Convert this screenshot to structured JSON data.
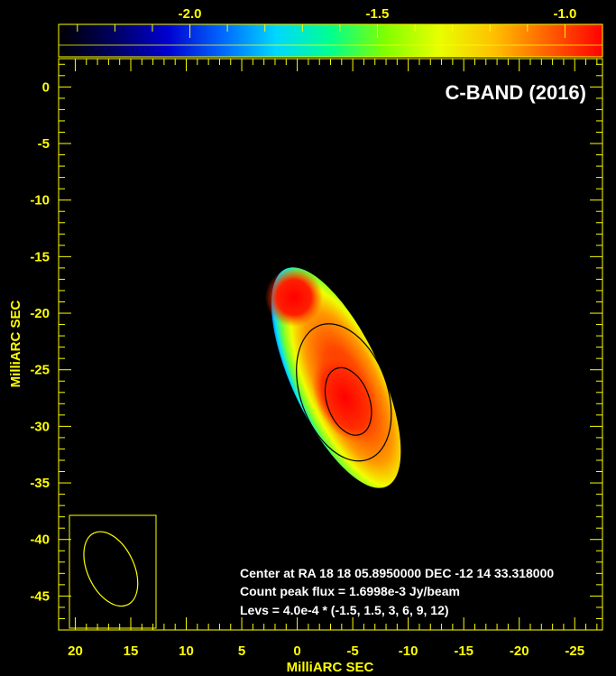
{
  "chart_data": {
    "type": "heatmap",
    "title": "C-BAND (2016)",
    "xlabel": "MilliARC SEC",
    "ylabel": "MilliARC SEC",
    "xlim": [
      21.5,
      -27.5
    ],
    "ylim": [
      -48,
      2.5
    ],
    "x_ticks": [
      20,
      15,
      10,
      5,
      0,
      -5,
      -10,
      -15,
      -20,
      -25
    ],
    "x_tick_labels": [
      "20",
      "15",
      "10",
      "5",
      "0",
      "-5",
      "-10",
      "-15",
      "-20",
      "-25"
    ],
    "y_ticks": [
      0,
      -5,
      -10,
      -15,
      -20,
      -25,
      -30,
      -35,
      -40,
      -45
    ],
    "y_tick_labels": [
      "0",
      "-5",
      "-10",
      "-15",
      "-20",
      "-25",
      "-30",
      "-35",
      "-40",
      "-45"
    ],
    "colorbar": {
      "range": [
        -2.35,
        -0.9
      ],
      "ticks": [
        -2.0,
        -1.5,
        -1.0
      ],
      "tick_labels": [
        "-2.0",
        "-1.5",
        "-1.0"
      ],
      "colors": [
        "#000000",
        "#000060",
        "#0000d0",
        "#0066ff",
        "#00d8ff",
        "#00ff90",
        "#80ff00",
        "#e8ff00",
        "#ffc000",
        "#ff6000",
        "#ff0000"
      ]
    },
    "source_region": {
      "center_ra_mas": -3.5,
      "center_dec_mas": -25.7,
      "half_length_mas": 10.6,
      "half_width_mas": 4.0,
      "position_angle_deg": 25,
      "peak_ra_mas": -4.3,
      "peak_dec_mas": -27.5
    },
    "contours": [
      {
        "level": 1.5,
        "center_x": -4.2,
        "center_y": -27.0,
        "semi_major": 6.3,
        "semi_minor": 3.9,
        "pa_deg": 20
      },
      {
        "level": 3,
        "center_x": -4.6,
        "center_y": -27.8,
        "semi_major": 3.1,
        "semi_minor": 1.9,
        "pa_deg": 20
      }
    ],
    "beam": {
      "center_x": 16.8,
      "center_y": -42.6,
      "semi_major": 3.5,
      "semi_minor": 2.1,
      "pa_deg": 25
    },
    "annotations": [
      "Center at RA 18 18 05.8950000 DEC -12 14 33.318000",
      "Count peak flux = 1.6998e-3 Jy/beam",
      "Levs = 4.0e-4 * (-1.5, 1.5, 3, 6, 9, 12)"
    ]
  },
  "colors": {
    "axis": "#ffff00",
    "contour": "#000000",
    "background": "#000000"
  }
}
